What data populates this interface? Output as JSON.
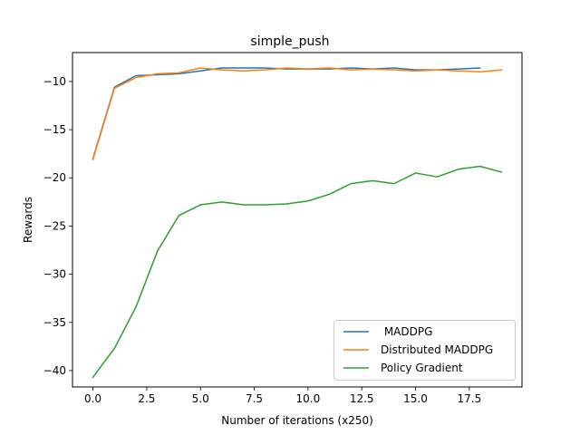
{
  "chart_data": {
    "type": "line",
    "title": "simple_push",
    "xlabel": "Number of iterations (x250)",
    "ylabel": "Rewards",
    "xlim": [
      -0.95,
      19.95
    ],
    "ylim": [
      -41.7,
      -7.0
    ],
    "xticks": [
      0.0,
      2.5,
      5.0,
      7.5,
      10.0,
      12.5,
      15.0,
      17.5
    ],
    "xtick_labels": [
      "0.0",
      "2.5",
      "5.0",
      "7.5",
      "10.0",
      "12.5",
      "15.0",
      "17.5"
    ],
    "yticks": [
      -40,
      -35,
      -30,
      -25,
      -20,
      -15,
      -10
    ],
    "ytick_labels": [
      "−40",
      "−35",
      "−30",
      "−25",
      "−20",
      "−15",
      "−10"
    ],
    "grid": false,
    "legend_position": "lower-right",
    "series": [
      {
        "name": " MADDPG",
        "color": "#1f77b4",
        "x": [
          0,
          1,
          2,
          3,
          4,
          5,
          6,
          7,
          8,
          9,
          10,
          11,
          12,
          13,
          14,
          15,
          16,
          17,
          18
        ],
        "values": [
          -18.0,
          -10.6,
          -9.4,
          -9.3,
          -9.2,
          -8.9,
          -8.6,
          -8.6,
          -8.6,
          -8.7,
          -8.7,
          -8.7,
          -8.6,
          -8.7,
          -8.6,
          -8.8,
          -8.8,
          -8.7,
          -8.6
        ]
      },
      {
        "name": "Distributed MADDPG",
        "color": "#ff7f0e",
        "x": [
          0,
          1,
          2,
          3,
          4,
          5,
          6,
          7,
          8,
          9,
          10,
          11,
          12,
          13,
          14,
          15,
          16,
          17,
          18,
          19
        ],
        "values": [
          -18.1,
          -10.7,
          -9.6,
          -9.2,
          -9.1,
          -8.6,
          -8.8,
          -8.9,
          -8.8,
          -8.6,
          -8.7,
          -8.6,
          -8.8,
          -8.7,
          -8.8,
          -8.9,
          -8.8,
          -8.9,
          -9.0,
          -8.8
        ]
      },
      {
        "name": "Policy Gradient",
        "color": "#2ca02c",
        "x": [
          0,
          1,
          2,
          3,
          4,
          5,
          6,
          7,
          8,
          9,
          10,
          11,
          12,
          13,
          14,
          15,
          16,
          17,
          18,
          19
        ],
        "values": [
          -40.7,
          -37.7,
          -33.4,
          -27.6,
          -23.9,
          -22.8,
          -22.5,
          -22.8,
          -22.8,
          -22.7,
          -22.4,
          -21.7,
          -20.6,
          -20.3,
          -20.6,
          -19.5,
          -19.9,
          -19.1,
          -18.8,
          -19.4
        ]
      }
    ]
  }
}
